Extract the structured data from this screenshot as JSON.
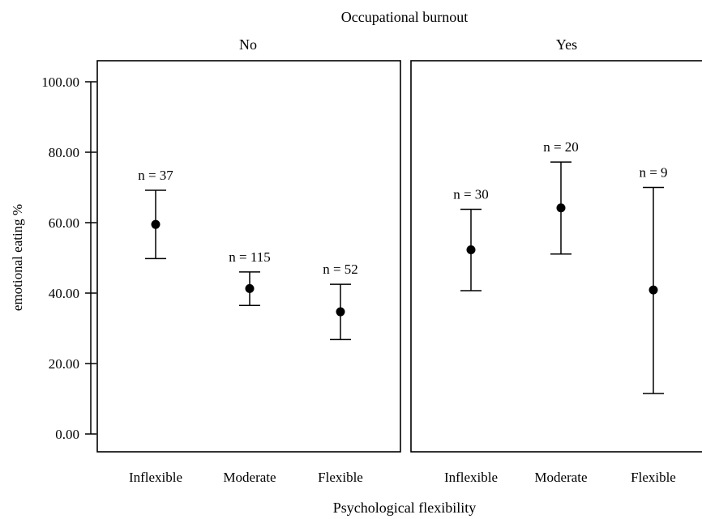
{
  "chart_data": {
    "type": "errorbar",
    "title": "Occupational burnout",
    "xlabel": "Psychological flexibility",
    "ylabel": "emotional eating %",
    "ylim": [
      0,
      100
    ],
    "yticks": [
      "0.00",
      "20.00",
      "40.00",
      "60.00",
      "80.00",
      "100.00"
    ],
    "ytick_values": [
      0,
      20,
      40,
      60,
      80,
      100
    ],
    "categories": [
      "Inflexible",
      "Moderate",
      "Flexible"
    ],
    "panels": [
      {
        "name": "No",
        "points": [
          {
            "category": "Inflexible",
            "n_label": "n = 37",
            "mean": 59.5,
            "lower": 49.8,
            "upper": 69.2
          },
          {
            "category": "Moderate",
            "n_label": "n = 115",
            "mean": 41.3,
            "lower": 36.5,
            "upper": 46.0
          },
          {
            "category": "Flexible",
            "n_label": "n = 52",
            "mean": 34.7,
            "lower": 26.8,
            "upper": 42.5
          }
        ]
      },
      {
        "name": "Yes",
        "points": [
          {
            "category": "Inflexible",
            "n_label": "n = 30",
            "mean": 52.3,
            "lower": 40.7,
            "upper": 63.8
          },
          {
            "category": "Moderate",
            "n_label": "n = 20",
            "mean": 64.2,
            "lower": 51.1,
            "upper": 77.2
          },
          {
            "category": "Flexible",
            "n_label": "n = 9",
            "mean": 40.9,
            "lower": 11.5,
            "upper": 70.0
          }
        ]
      }
    ]
  }
}
